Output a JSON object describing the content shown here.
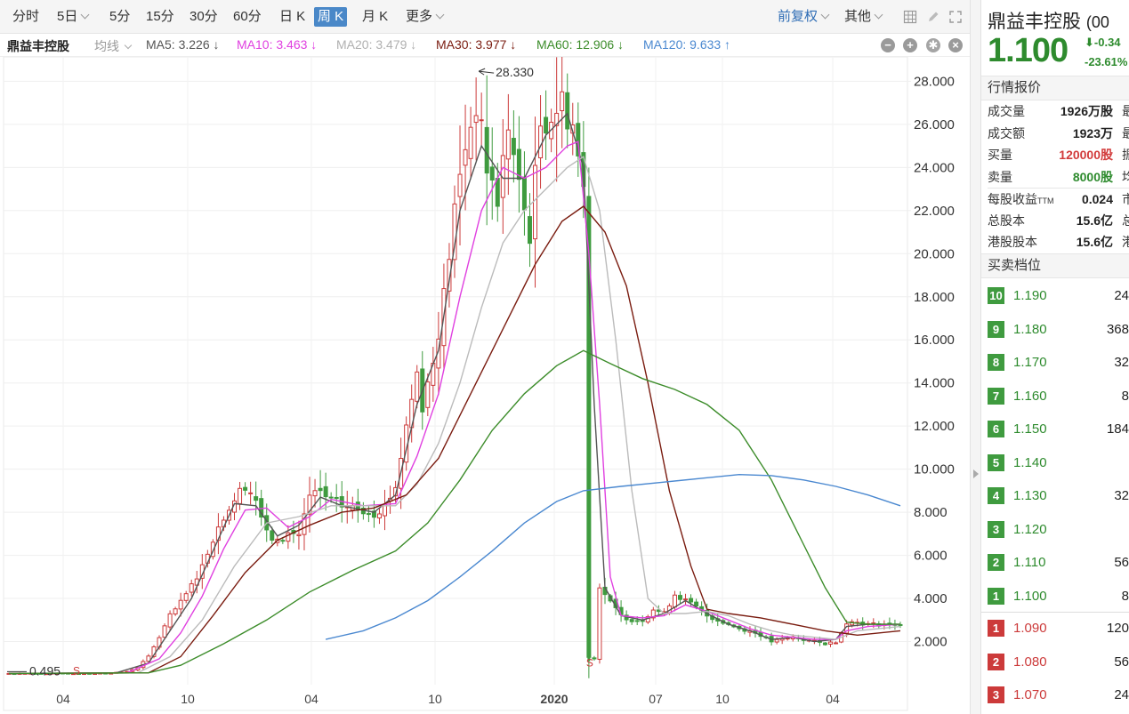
{
  "toolbar": {
    "periods": [
      {
        "label": "分时",
        "has_caret": false
      },
      {
        "label": "5日",
        "has_caret": true
      },
      {
        "label": "5分",
        "has_caret": false
      },
      {
        "label": "15分",
        "has_caret": false
      },
      {
        "label": "30分",
        "has_caret": false
      },
      {
        "label": "60分",
        "has_caret": false
      },
      {
        "label": "日 K",
        "has_caret": false
      },
      {
        "label": "周 K",
        "has_caret": false,
        "active": true
      },
      {
        "label": "月 K",
        "has_caret": false
      },
      {
        "label": "更多",
        "has_caret": true
      }
    ],
    "adjust_label": "前复权",
    "other_label": "其他"
  },
  "infobar": {
    "stock_name": "鼎益丰控股",
    "ma_selector": "均线",
    "ma5": "MA5: 3.226 ↓",
    "ma10": "MA10: 3.463 ↓",
    "ma20": "MA20: 3.479 ↓",
    "ma30": "MA30: 3.977 ↓",
    "ma60": "MA60: 12.906 ↓",
    "ma120": "MA120: 9.633 ↑"
  },
  "colors": {
    "up": "#cc3a3a",
    "down": "#3f9b3f",
    "ma5": "#555555",
    "ma10": "#e040e0",
    "ma20": "#bbbbbb",
    "ma30": "#7a1c10",
    "ma60": "#3c8c2a",
    "ma120": "#4a88d0",
    "accent": "#4a88c8"
  },
  "chart_data": {
    "type": "candlestick",
    "period": "weekly",
    "yticks": [
      "28.000",
      "26.000",
      "24.000",
      "22.000",
      "20.000",
      "18.000",
      "16.000",
      "14.000",
      "12.000",
      "10.000",
      "8.000",
      "6.000",
      "4.000",
      "2.000"
    ],
    "ylim": [
      0,
      28.8
    ],
    "xticks": [
      "04",
      "10",
      "04",
      "10",
      "2020",
      "07",
      "10",
      "04"
    ],
    "annotations": {
      "high": "28.330",
      "low": "0.495"
    },
    "markers": [
      "S",
      "S"
    ],
    "close_path": [
      [
        0,
        0.52
      ],
      [
        14,
        0.52
      ],
      [
        18,
        0.53
      ],
      [
        22,
        0.6
      ],
      [
        24,
        0.8
      ],
      [
        26,
        1.3
      ],
      [
        28,
        2.2
      ],
      [
        30,
        3.2
      ],
      [
        32,
        3.8
      ],
      [
        34,
        4.6
      ],
      [
        36,
        5.5
      ],
      [
        38,
        6.8
      ],
      [
        40,
        7.8
      ],
      [
        42,
        8.6
      ],
      [
        44,
        9.3
      ],
      [
        46,
        8.6
      ],
      [
        48,
        7.0
      ],
      [
        50,
        6.6
      ],
      [
        52,
        7.0
      ],
      [
        54,
        7.0
      ],
      [
        56,
        8.7
      ],
      [
        58,
        8.9
      ],
      [
        60,
        8.5
      ],
      [
        62,
        8.3
      ],
      [
        64,
        8.2
      ],
      [
        66,
        8.1
      ],
      [
        68,
        8.0
      ],
      [
        70,
        8.3
      ],
      [
        72,
        9.2
      ],
      [
        74,
        12.0
      ],
      [
        76,
        14.5
      ],
      [
        77,
        13.0
      ],
      [
        79,
        15.0
      ],
      [
        81,
        18.0
      ],
      [
        83,
        22.0
      ],
      [
        85,
        25.0
      ],
      [
        87,
        27.0
      ],
      [
        89,
        24.0
      ],
      [
        91,
        22.5
      ],
      [
        93,
        26.0
      ],
      [
        95,
        23.0
      ],
      [
        97,
        21.0
      ],
      [
        99,
        26.0
      ],
      [
        101,
        26.5
      ],
      [
        103,
        27.0
      ],
      [
        105,
        26.0
      ],
      [
        107,
        23.0
      ],
      [
        108,
        1.3
      ],
      [
        109,
        1.2
      ],
      [
        110,
        4.6
      ],
      [
        112,
        3.8
      ],
      [
        114,
        3.2
      ],
      [
        116,
        3.0
      ],
      [
        118,
        3.0
      ],
      [
        120,
        3.5
      ],
      [
        122,
        3.3
      ],
      [
        124,
        4.2
      ],
      [
        126,
        3.9
      ],
      [
        128,
        3.6
      ],
      [
        130,
        3.2
      ],
      [
        132,
        3.0
      ],
      [
        134,
        2.8
      ],
      [
        136,
        2.6
      ],
      [
        138,
        2.5
      ],
      [
        140,
        2.3
      ],
      [
        142,
        2.0
      ],
      [
        144,
        2.1
      ],
      [
        146,
        2.2
      ],
      [
        148,
        2.1
      ],
      [
        150,
        2.0
      ],
      [
        152,
        1.9
      ],
      [
        154,
        2.0
      ],
      [
        156,
        2.9
      ],
      [
        158,
        2.9
      ],
      [
        160,
        2.8
      ],
      [
        162,
        2.8
      ],
      [
        164,
        2.8
      ],
      [
        166,
        2.8
      ]
    ],
    "ma_series": [
      {
        "name": "MA5",
        "color": "#555555",
        "points": [
          [
            0,
            0.52
          ],
          [
            20,
            0.55
          ],
          [
            26,
            1.0
          ],
          [
            30,
            2.5
          ],
          [
            34,
            4.0
          ],
          [
            38,
            6.2
          ],
          [
            42,
            8.4
          ],
          [
            46,
            8.3
          ],
          [
            50,
            6.9
          ],
          [
            54,
            7.4
          ],
          [
            58,
            8.7
          ],
          [
            62,
            8.3
          ],
          [
            68,
            8.0
          ],
          [
            72,
            8.8
          ],
          [
            76,
            13.0
          ],
          [
            80,
            15.5
          ],
          [
            84,
            22.0
          ],
          [
            88,
            25.0
          ],
          [
            92,
            23.5
          ],
          [
            96,
            23.5
          ],
          [
            100,
            25.5
          ],
          [
            104,
            26.5
          ],
          [
            107,
            24.0
          ],
          [
            109,
            13.0
          ],
          [
            111,
            4.5
          ],
          [
            114,
            3.2
          ],
          [
            118,
            3.0
          ],
          [
            122,
            3.3
          ],
          [
            126,
            3.9
          ],
          [
            130,
            3.3
          ],
          [
            134,
            2.8
          ],
          [
            138,
            2.5
          ],
          [
            142,
            2.1
          ],
          [
            146,
            2.2
          ],
          [
            150,
            2.0
          ],
          [
            154,
            2.1
          ],
          [
            156,
            2.7
          ],
          [
            160,
            2.8
          ],
          [
            166,
            2.8
          ]
        ]
      },
      {
        "name": "MA10",
        "color": "#e040e0",
        "points": [
          [
            0,
            0.52
          ],
          [
            22,
            0.55
          ],
          [
            28,
            1.2
          ],
          [
            32,
            2.4
          ],
          [
            36,
            4.1
          ],
          [
            40,
            6.3
          ],
          [
            44,
            8.1
          ],
          [
            48,
            8.2
          ],
          [
            52,
            7.3
          ],
          [
            56,
            7.8
          ],
          [
            60,
            8.6
          ],
          [
            66,
            8.3
          ],
          [
            72,
            8.4
          ],
          [
            76,
            10.6
          ],
          [
            80,
            13.5
          ],
          [
            84,
            18.0
          ],
          [
            88,
            22.0
          ],
          [
            92,
            24.0
          ],
          [
            96,
            23.5
          ],
          [
            100,
            24.0
          ],
          [
            104,
            25.0
          ],
          [
            106,
            25.2
          ],
          [
            108,
            20.0
          ],
          [
            110,
            13.0
          ],
          [
            112,
            5.0
          ],
          [
            114,
            3.2
          ],
          [
            118,
            3.1
          ],
          [
            122,
            3.2
          ],
          [
            126,
            3.7
          ],
          [
            130,
            3.4
          ],
          [
            134,
            3.0
          ],
          [
            138,
            2.6
          ],
          [
            142,
            2.3
          ],
          [
            146,
            2.2
          ],
          [
            150,
            2.1
          ],
          [
            154,
            2.1
          ],
          [
            156,
            2.5
          ],
          [
            160,
            2.7
          ],
          [
            166,
            2.8
          ]
        ]
      },
      {
        "name": "MA20",
        "color": "#bbbbbb",
        "points": [
          [
            0,
            0.52
          ],
          [
            24,
            0.55
          ],
          [
            30,
            1.3
          ],
          [
            36,
            3.0
          ],
          [
            42,
            5.5
          ],
          [
            48,
            7.5
          ],
          [
            54,
            7.8
          ],
          [
            60,
            8.3
          ],
          [
            66,
            8.3
          ],
          [
            72,
            8.3
          ],
          [
            76,
            9.3
          ],
          [
            80,
            11.2
          ],
          [
            84,
            14.0
          ],
          [
            88,
            17.5
          ],
          [
            92,
            20.5
          ],
          [
            96,
            22.0
          ],
          [
            100,
            23.0
          ],
          [
            104,
            24.0
          ],
          [
            107,
            24.5
          ],
          [
            110,
            22.0
          ],
          [
            113,
            16.0
          ],
          [
            116,
            9.0
          ],
          [
            119,
            4.0
          ],
          [
            122,
            3.3
          ],
          [
            126,
            3.3
          ],
          [
            130,
            3.4
          ],
          [
            134,
            3.2
          ],
          [
            138,
            2.8
          ],
          [
            142,
            2.5
          ],
          [
            146,
            2.3
          ],
          [
            150,
            2.2
          ],
          [
            154,
            2.1
          ],
          [
            158,
            2.5
          ],
          [
            166,
            2.7
          ]
        ]
      },
      {
        "name": "MA30",
        "color": "#7a1c10",
        "points": [
          [
            0,
            0.52
          ],
          [
            26,
            0.55
          ],
          [
            32,
            1.3
          ],
          [
            38,
            3.2
          ],
          [
            44,
            5.2
          ],
          [
            50,
            6.7
          ],
          [
            56,
            7.4
          ],
          [
            62,
            8.0
          ],
          [
            68,
            8.2
          ],
          [
            74,
            8.8
          ],
          [
            80,
            10.5
          ],
          [
            86,
            13.5
          ],
          [
            92,
            16.5
          ],
          [
            98,
            19.5
          ],
          [
            103,
            21.5
          ],
          [
            107,
            22.2
          ],
          [
            111,
            21.0
          ],
          [
            115,
            18.5
          ],
          [
            119,
            14.0
          ],
          [
            123,
            9.0
          ],
          [
            127,
            5.5
          ],
          [
            130,
            3.5
          ],
          [
            134,
            3.3
          ],
          [
            140,
            3.1
          ],
          [
            146,
            2.8
          ],
          [
            152,
            2.5
          ],
          [
            158,
            2.3
          ],
          [
            166,
            2.5
          ]
        ]
      },
      {
        "name": "MA60",
        "color": "#3c8c2a",
        "points": [
          [
            0,
            0.52
          ],
          [
            26,
            0.55
          ],
          [
            32,
            0.9
          ],
          [
            40,
            1.9
          ],
          [
            48,
            3.0
          ],
          [
            56,
            4.3
          ],
          [
            64,
            5.3
          ],
          [
            72,
            6.2
          ],
          [
            78,
            7.5
          ],
          [
            84,
            9.5
          ],
          [
            90,
            11.8
          ],
          [
            96,
            13.5
          ],
          [
            102,
            14.8
          ],
          [
            107,
            15.5
          ],
          [
            112,
            14.9
          ],
          [
            118,
            14.2
          ],
          [
            124,
            13.7
          ],
          [
            130,
            13.0
          ],
          [
            136,
            11.8
          ],
          [
            142,
            9.5
          ],
          [
            148,
            6.5
          ],
          [
            152,
            4.5
          ],
          [
            156,
            2.9
          ],
          [
            160,
            2.8
          ],
          [
            166,
            2.8
          ]
        ]
      },
      {
        "name": "MA120",
        "color": "#4a88d0",
        "points": [
          [
            59,
            2.1
          ],
          [
            66,
            2.5
          ],
          [
            72,
            3.1
          ],
          [
            78,
            3.9
          ],
          [
            84,
            5.0
          ],
          [
            90,
            6.2
          ],
          [
            96,
            7.5
          ],
          [
            102,
            8.5
          ],
          [
            107,
            9.0
          ],
          [
            114,
            9.2
          ],
          [
            122,
            9.4
          ],
          [
            130,
            9.6
          ],
          [
            136,
            9.75
          ],
          [
            142,
            9.7
          ],
          [
            148,
            9.5
          ],
          [
            154,
            9.2
          ],
          [
            160,
            8.8
          ],
          [
            166,
            8.3
          ]
        ]
      }
    ]
  },
  "side": {
    "name": "鼎益丰控股",
    "code_fragment": "(00",
    "price": "1.100",
    "change": "-0.34",
    "change_pct": "-23.61%",
    "quote_title": "行情报价",
    "quote_rows": [
      {
        "label": "成交量",
        "value": "1926万股",
        "tone": "normal",
        "cut": "最"
      },
      {
        "label": "成交额",
        "value": "1923万",
        "tone": "normal",
        "cut": "最"
      },
      {
        "label": "买量",
        "value": "120000股",
        "tone": "red",
        "cut": "振"
      },
      {
        "label": "卖量",
        "value": "8000股",
        "tone": "green",
        "cut": "均"
      },
      {
        "label": "每股收益",
        "sup": "TTM",
        "value": "0.024",
        "tone": "normal",
        "cut": "市"
      },
      {
        "label": "总股本",
        "value": "15.6亿",
        "tone": "normal",
        "cut": "总"
      },
      {
        "label": "港股股本",
        "value": "15.6亿",
        "tone": "normal",
        "cut": "港"
      }
    ],
    "orderbook_title": "买卖档位",
    "asks": [
      {
        "level": "10",
        "price": "1.190",
        "vol": "24"
      },
      {
        "level": "9",
        "price": "1.180",
        "vol": "368"
      },
      {
        "level": "8",
        "price": "1.170",
        "vol": "32"
      },
      {
        "level": "7",
        "price": "1.160",
        "vol": "8"
      },
      {
        "level": "6",
        "price": "1.150",
        "vol": "184"
      },
      {
        "level": "5",
        "price": "1.140",
        "vol": ""
      },
      {
        "level": "4",
        "price": "1.130",
        "vol": "32"
      },
      {
        "level": "3",
        "price": "1.120",
        "vol": ""
      },
      {
        "level": "2",
        "price": "1.110",
        "vol": "56"
      },
      {
        "level": "1",
        "price": "1.100",
        "vol": "8"
      }
    ],
    "bids": [
      {
        "level": "1",
        "price": "1.090",
        "vol": "120"
      },
      {
        "level": "2",
        "price": "1.080",
        "vol": "56"
      },
      {
        "level": "3",
        "price": "1.070",
        "vol": "24"
      }
    ]
  }
}
